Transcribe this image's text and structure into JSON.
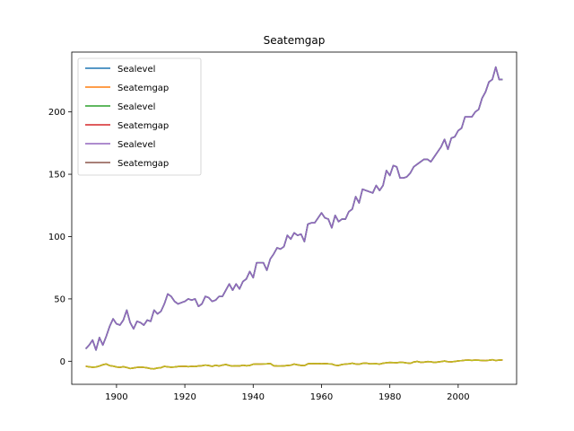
{
  "chart_data": {
    "type": "line",
    "title": "Seatemgap",
    "xlabel": "",
    "ylabel": "",
    "xlim": [
      1886.9,
      2017.1
    ],
    "ylim": [
      -18.5,
      248
    ],
    "x_ticks": [
      1900,
      1920,
      1940,
      1960,
      1980,
      2000
    ],
    "y_ticks": [
      0,
      50,
      100,
      150,
      200
    ],
    "grid": false,
    "legend_position": "top-left",
    "x": [
      1891,
      1892,
      1893,
      1894,
      1895,
      1896,
      1897,
      1898,
      1899,
      1900,
      1901,
      1902,
      1903,
      1904,
      1905,
      1906,
      1907,
      1908,
      1909,
      1910,
      1911,
      1912,
      1913,
      1914,
      1915,
      1916,
      1917,
      1918,
      1919,
      1920,
      1921,
      1922,
      1923,
      1924,
      1925,
      1926,
      1927,
      1928,
      1929,
      1930,
      1931,
      1932,
      1933,
      1934,
      1935,
      1936,
      1937,
      1938,
      1939,
      1940,
      1941,
      1942,
      1943,
      1944,
      1945,
      1946,
      1947,
      1948,
      1949,
      1950,
      1951,
      1952,
      1953,
      1954,
      1955,
      1956,
      1957,
      1958,
      1959,
      1960,
      1961,
      1962,
      1963,
      1964,
      1965,
      1966,
      1967,
      1968,
      1969,
      1970,
      1971,
      1972,
      1973,
      1974,
      1975,
      1976,
      1977,
      1978,
      1979,
      1980,
      1981,
      1982,
      1983,
      1984,
      1985,
      1986,
      1987,
      1988,
      1989,
      1990,
      1991,
      1992,
      1993,
      1994,
      1995,
      1996,
      1997,
      1998,
      1999,
      2000,
      2001,
      2002,
      2003,
      2004,
      2005,
      2006,
      2007,
      2008,
      2009,
      2010,
      2011,
      2012,
      2013
    ],
    "series": [
      {
        "name": "Sealevel",
        "color": "#1f77b4",
        "values": [
          10,
          13,
          17,
          9,
          19,
          13,
          20,
          28,
          34,
          30,
          29,
          33,
          41,
          31,
          26,
          32,
          31,
          29,
          33,
          32,
          41,
          38,
          40,
          46,
          54,
          52,
          48,
          46,
          47,
          48,
          50,
          49,
          50,
          44,
          46,
          52,
          51,
          48,
          49,
          52,
          52,
          57,
          62,
          57,
          62,
          58,
          64,
          66,
          72,
          67,
          79,
          79,
          79,
          73,
          82,
          86,
          91,
          90,
          92,
          101,
          98,
          103,
          101,
          102,
          96,
          110,
          111,
          111,
          115,
          119,
          115,
          114,
          107,
          117,
          112,
          114,
          114,
          120,
          122,
          132,
          127,
          138,
          137,
          136,
          135,
          141,
          137,
          141,
          153,
          149,
          157,
          156,
          147,
          147,
          148,
          151,
          156,
          158,
          160,
          162,
          162,
          160,
          164,
          168,
          172,
          178,
          170,
          179,
          180,
          185,
          187,
          196,
          196,
          196,
          200,
          202,
          211,
          216,
          224,
          226,
          236,
          226,
          226
        ]
      },
      {
        "name": "Seatemgap",
        "color": "#ff7f0e",
        "values": [
          -4,
          -4.5,
          -4.8,
          -4.6,
          -3.8,
          -2.8,
          -2.2,
          -3.5,
          -3.9,
          -4.6,
          -4.9,
          -4.4,
          -5,
          -5.8,
          -5.4,
          -4.9,
          -4.7,
          -4.9,
          -5.3,
          -5.9,
          -6.1,
          -5.4,
          -5.2,
          -4.1,
          -4.5,
          -4.8,
          -4.6,
          -4.2,
          -4.1,
          -4,
          -4.3,
          -4.1,
          -4.2,
          -3.8,
          -3.6,
          -3.1,
          -3.4,
          -4.1,
          -3.2,
          -3.8,
          -3.1,
          -2.6,
          -3.4,
          -3.9,
          -3.6,
          -3.8,
          -3.2,
          -3.6,
          -3.4,
          -2.4,
          -2.2,
          -2.3,
          -2.2,
          -2.1,
          -1.8,
          -3.6,
          -3.8,
          -3.9,
          -3.7,
          -3.4,
          -3.2,
          -2.3,
          -2.9,
          -3.3,
          -3.5,
          -2.1,
          -1.8,
          -1.9,
          -1.8,
          -2.1,
          -1.9,
          -2.1,
          -2.2,
          -3.2,
          -3.4,
          -2.6,
          -2.3,
          -2.1,
          -1.6,
          -2.2,
          -2.4,
          -1.7,
          -1.5,
          -2,
          -2.1,
          -2,
          -2.3,
          -1.6,
          -1.2,
          -1,
          -1.1,
          -1.2,
          -0.9,
          -1,
          -1.4,
          -1.7,
          -0.6,
          -0.2,
          -0.8,
          -0.7,
          -0.3,
          -0.4,
          -1,
          -0.6,
          -0.3,
          0.2,
          -0.4,
          -0.5,
          -0.2,
          0.3,
          0.5,
          0.8,
          0.9,
          0.7,
          0.9,
          0.8,
          0.6,
          0.5,
          0.8,
          1.2,
          0.6,
          0.9,
          1.1
        ]
      },
      {
        "name": "Sealevel",
        "color": "#2ca02c",
        "values": [
          10,
          13,
          17,
          9,
          19,
          13,
          20,
          28,
          34,
          30,
          29,
          33,
          41,
          31,
          26,
          32,
          31,
          29,
          33,
          32,
          41,
          38,
          40,
          46,
          54,
          52,
          48,
          46,
          47,
          48,
          50,
          49,
          50,
          44,
          46,
          52,
          51,
          48,
          49,
          52,
          52,
          57,
          62,
          57,
          62,
          58,
          64,
          66,
          72,
          67,
          79,
          79,
          79,
          73,
          82,
          86,
          91,
          90,
          92,
          101,
          98,
          103,
          101,
          102,
          96,
          110,
          111,
          111,
          115,
          119,
          115,
          114,
          107,
          117,
          112,
          114,
          114,
          120,
          122,
          132,
          127,
          138,
          137,
          136,
          135,
          141,
          137,
          141,
          153,
          149,
          157,
          156,
          147,
          147,
          148,
          151,
          156,
          158,
          160,
          162,
          162,
          160,
          164,
          168,
          172,
          178,
          170,
          179,
          180,
          185,
          187,
          196,
          196,
          196,
          200,
          202,
          211,
          216,
          224,
          226,
          236,
          226,
          226
        ]
      },
      {
        "name": "Seatemgap",
        "color": "#d62728",
        "values": [
          -4,
          -4.5,
          -4.8,
          -4.6,
          -3.8,
          -2.8,
          -2.2,
          -3.5,
          -3.9,
          -4.6,
          -4.9,
          -4.4,
          -5,
          -5.8,
          -5.4,
          -4.9,
          -4.7,
          -4.9,
          -5.3,
          -5.9,
          -6.1,
          -5.4,
          -5.2,
          -4.1,
          -4.5,
          -4.8,
          -4.6,
          -4.2,
          -4.1,
          -4,
          -4.3,
          -4.1,
          -4.2,
          -3.8,
          -3.6,
          -3.1,
          -3.4,
          -4.1,
          -3.2,
          -3.8,
          -3.1,
          -2.6,
          -3.4,
          -3.9,
          -3.6,
          -3.8,
          -3.2,
          -3.6,
          -3.4,
          -2.4,
          -2.2,
          -2.3,
          -2.2,
          -2.1,
          -1.8,
          -3.6,
          -3.8,
          -3.9,
          -3.7,
          -3.4,
          -3.2,
          -2.3,
          -2.9,
          -3.3,
          -3.5,
          -2.1,
          -1.8,
          -1.9,
          -1.8,
          -2.1,
          -1.9,
          -2.1,
          -2.2,
          -3.2,
          -3.4,
          -2.6,
          -2.3,
          -2.1,
          -1.6,
          -2.2,
          -2.4,
          -1.7,
          -1.5,
          -2,
          -2.1,
          -2,
          -2.3,
          -1.6,
          -1.2,
          -1,
          -1.1,
          -1.2,
          -0.9,
          -1,
          -1.4,
          -1.7,
          -0.6,
          -0.2,
          -0.8,
          -0.7,
          -0.3,
          -0.4,
          -1,
          -0.6,
          -0.3,
          0.2,
          -0.4,
          -0.5,
          -0.2,
          0.3,
          0.5,
          0.8,
          0.9,
          0.7,
          0.9,
          0.8,
          0.6,
          0.5,
          0.8,
          1.2,
          0.6,
          0.9,
          1.1
        ]
      },
      {
        "name": "Sealevel",
        "color": "#9467bd",
        "values": [
          10,
          13,
          17,
          9,
          19,
          13,
          20,
          28,
          34,
          30,
          29,
          33,
          41,
          31,
          26,
          32,
          31,
          29,
          33,
          32,
          41,
          38,
          40,
          46,
          54,
          52,
          48,
          46,
          47,
          48,
          50,
          49,
          50,
          44,
          46,
          52,
          51,
          48,
          49,
          52,
          52,
          57,
          62,
          57,
          62,
          58,
          64,
          66,
          72,
          67,
          79,
          79,
          79,
          73,
          82,
          86,
          91,
          90,
          92,
          101,
          98,
          103,
          101,
          102,
          96,
          110,
          111,
          111,
          115,
          119,
          115,
          114,
          107,
          117,
          112,
          114,
          114,
          120,
          122,
          132,
          127,
          138,
          137,
          136,
          135,
          141,
          137,
          141,
          153,
          149,
          157,
          156,
          147,
          147,
          148,
          151,
          156,
          158,
          160,
          162,
          162,
          160,
          164,
          168,
          172,
          178,
          170,
          179,
          180,
          185,
          187,
          196,
          196,
          196,
          200,
          202,
          211,
          216,
          224,
          226,
          236,
          226,
          226
        ]
      },
      {
        "name": "Seatemgap",
        "color": "#8c564b",
        "values": [
          -4,
          -4.5,
          -4.8,
          -4.6,
          -3.8,
          -2.8,
          -2.2,
          -3.5,
          -3.9,
          -4.6,
          -4.9,
          -4.4,
          -5,
          -5.8,
          -5.4,
          -4.9,
          -4.7,
          -4.9,
          -5.3,
          -5.9,
          -6.1,
          -5.4,
          -5.2,
          -4.1,
          -4.5,
          -4.8,
          -4.6,
          -4.2,
          -4.1,
          -4,
          -4.3,
          -4.1,
          -4.2,
          -3.8,
          -3.6,
          -3.1,
          -3.4,
          -4.1,
          -3.2,
          -3.8,
          -3.1,
          -2.6,
          -3.4,
          -3.9,
          -3.6,
          -3.8,
          -3.2,
          -3.6,
          -3.4,
          -2.4,
          -2.2,
          -2.3,
          -2.2,
          -2.1,
          -1.8,
          -3.6,
          -3.8,
          -3.9,
          -3.7,
          -3.4,
          -3.2,
          -2.3,
          -2.9,
          -3.3,
          -3.5,
          -2.1,
          -1.8,
          -1.9,
          -1.8,
          -2.1,
          -1.9,
          -2.1,
          -2.2,
          -3.2,
          -3.4,
          -2.6,
          -2.3,
          -2.1,
          -1.6,
          -2.2,
          -2.4,
          -1.7,
          -1.5,
          -2,
          -2.1,
          -2,
          -2.3,
          -1.6,
          -1.2,
          -1,
          -1.1,
          -1.2,
          -0.9,
          -1,
          -1.4,
          -1.7,
          -0.6,
          -0.2,
          -0.8,
          -0.7,
          -0.3,
          -0.4,
          -1,
          -0.6,
          -0.3,
          0.2,
          -0.4,
          -0.5,
          -0.2,
          0.3,
          0.5,
          0.8,
          0.9,
          0.7,
          0.9,
          0.8,
          0.6,
          0.5,
          0.8,
          1.2,
          0.6,
          0.9,
          1.1
        ]
      }
    ],
    "overlay_color": "#bcbd22"
  }
}
